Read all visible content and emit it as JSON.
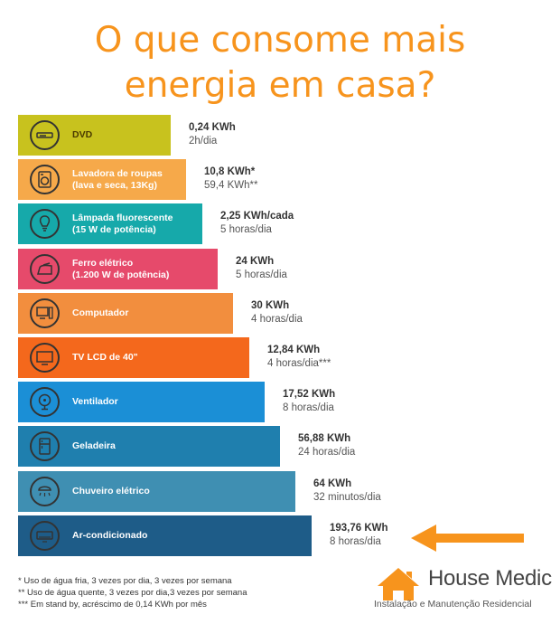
{
  "title_lines": [
    "O que consome mais",
    "energia em casa?"
  ],
  "chart_data": {
    "type": "bar",
    "orientation": "horizontal",
    "categories": [
      "DVD",
      "Lavadora de roupas\n(lava e seca, 13Kg)",
      "Lâmpada fluorescente\n(15 W de potência)",
      "Ferro elétrico\n(1.200 W de potência)",
      "Computador",
      "TV LCD de 40\"",
      "Ventilador",
      "Geladeira",
      "Chuveiro elétrico",
      "Ar-condicionado"
    ],
    "value_labels": [
      "0,24 KWh",
      "10,8 KWh*",
      "2,25 KWh/cada",
      "24 KWh",
      "30 KWh",
      "12,84 KWh",
      "17,52 KWh",
      "56,88 KWh",
      "64 KWh",
      "193,76 KWh"
    ],
    "detail_labels": [
      "2h/dia",
      "59,4 KWh**",
      "5 horas/dia",
      "5 horas/dia",
      "4 horas/dia",
      "4 horas/dia***",
      "8 horas/dia",
      "24 horas/dia",
      "32 minutos/dia",
      "8 horas/dia"
    ],
    "rank": [
      1,
      2,
      3,
      4,
      5,
      6,
      7,
      8,
      9,
      10
    ],
    "colors": [
      "#c8c21e",
      "#f6a94a",
      "#16a9aa",
      "#e64a6b",
      "#f28e3e",
      "#f4681c",
      "#1b8fd6",
      "#1f7fae",
      "#3f8fb2",
      "#1e5c88"
    ],
    "icons": [
      "dvd-player-icon",
      "washing-machine-icon",
      "light-bulb-icon",
      "iron-icon",
      "computer-icon",
      "tv-icon",
      "fan-icon",
      "refrigerator-icon",
      "shower-icon",
      "air-conditioner-icon"
    ]
  },
  "annotation": "highlight-arrow",
  "arrow_color": "#f7941d",
  "footnotes": [
    "* Uso de água fria, 3 vezes por dia, 3 vezes por semana",
    "** Uso de água quente, 3 vezes por dia,3 vezes por semana",
    "*** Em stand by, acréscimo de 0,14 KWh por mês"
  ],
  "logo": {
    "brand": "House Medic",
    "tagline": "Instalação e Manutenção Residencial",
    "color": "#f7941d"
  }
}
